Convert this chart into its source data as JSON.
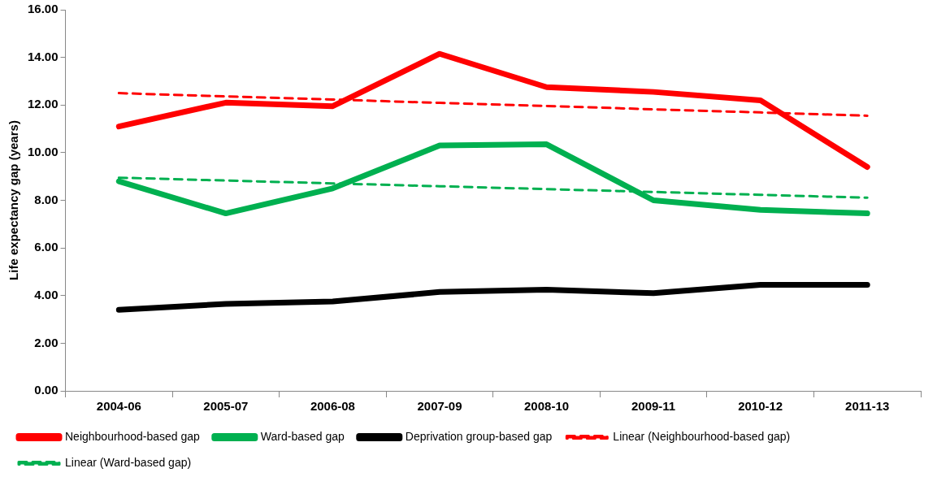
{
  "chart_data": {
    "type": "line",
    "ylabel": "Life expectancy gap (years)",
    "categories": [
      "2004-06",
      "2005-07",
      "2006-08",
      "2007-09",
      "2008-10",
      "2009-11",
      "2010-12",
      "2011-13"
    ],
    "ylim": [
      0,
      16
    ],
    "yticks": [
      {
        "value": 0,
        "label": "0.00"
      },
      {
        "value": 2,
        "label": "2.00"
      },
      {
        "value": 4,
        "label": "4.00"
      },
      {
        "value": 6,
        "label": "6.00"
      },
      {
        "value": 8,
        "label": "8.00"
      },
      {
        "value": 10,
        "label": "10.00"
      },
      {
        "value": 12,
        "label": "12.00"
      },
      {
        "value": 14,
        "label": "14.00"
      },
      {
        "value": 16,
        "label": "16.00"
      }
    ],
    "grid": false,
    "legend": "bottom",
    "marker": "none",
    "series": [
      {
        "name": "Neighbourhood-based gap",
        "color": "#ff0000",
        "values": [
          11.1,
          12.1,
          11.95,
          14.15,
          12.75,
          12.55,
          12.2,
          9.4
        ]
      },
      {
        "name": "Ward-based gap",
        "color": "#00b050",
        "values": [
          8.8,
          7.45,
          8.5,
          10.3,
          10.35,
          8.0,
          7.6,
          7.45
        ]
      },
      {
        "name": "Deprivation group-based gap",
        "color": "#000000",
        "values": [
          3.4,
          3.65,
          3.75,
          4.15,
          4.25,
          4.1,
          4.45,
          4.45
        ]
      },
      {
        "name": "Linear (Neighbourhood-based gap)",
        "color": "#ff0000",
        "line_style": "dashed",
        "values": [
          12.5,
          12.36,
          12.23,
          12.09,
          11.96,
          11.82,
          11.69,
          11.55
        ]
      },
      {
        "name": "Linear (Ward-based gap)",
        "color": "#00b050",
        "line_style": "dashed",
        "values": [
          8.95,
          8.83,
          8.71,
          8.59,
          8.47,
          8.35,
          8.23,
          8.11
        ]
      }
    ]
  }
}
